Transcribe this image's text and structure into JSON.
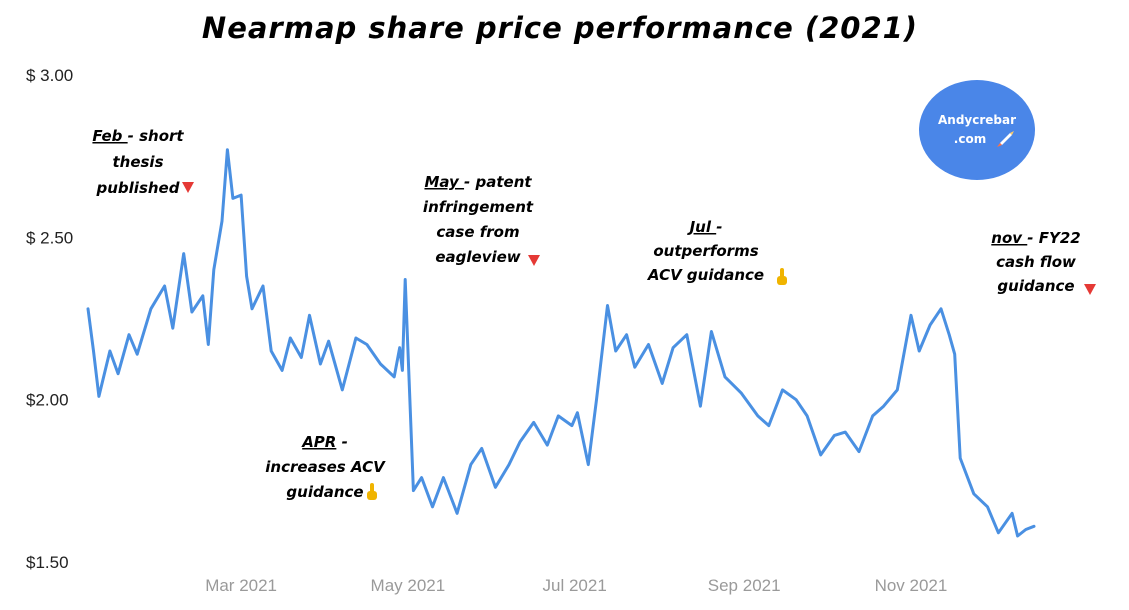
{
  "chart_data": {
    "type": "line",
    "title": "Nearmap share price performance (2021)",
    "xlabel": "",
    "ylabel": "",
    "x_ticks": [
      "Mar 2021",
      "May 2021",
      "Jul 2021",
      "Sep 2021",
      "Nov 2021"
    ],
    "y_ticks": [
      "$ 3.00",
      "$ 2.50",
      "$2.00",
      "$1.50"
    ],
    "ylim": [
      1.5,
      3.0
    ],
    "xlim": [
      "2021-01-04",
      "2021-12-31"
    ],
    "grid": false,
    "legend": "none",
    "line_color": "#4a90e2",
    "series": [
      {
        "x": [
          "2021-01-04",
          "2021-01-06",
          "2021-01-08",
          "2021-01-12",
          "2021-01-15",
          "2021-01-19",
          "2021-01-22",
          "2021-01-27",
          "2021-02-01",
          "2021-02-04",
          "2021-02-08",
          "2021-02-11",
          "2021-02-15",
          "2021-02-17",
          "2021-02-19",
          "2021-02-22",
          "2021-02-24",
          "2021-02-26",
          "2021-03-01",
          "2021-03-03",
          "2021-03-05",
          "2021-03-09",
          "2021-03-12",
          "2021-03-16",
          "2021-03-19",
          "2021-03-23",
          "2021-03-26",
          "2021-03-30",
          "2021-04-02",
          "2021-04-07",
          "2021-04-12",
          "2021-04-16",
          "2021-04-21",
          "2021-04-26",
          "2021-04-28",
          "2021-04-29",
          "2021-04-30",
          "2021-05-03",
          "2021-05-06",
          "2021-05-10",
          "2021-05-14",
          "2021-05-19",
          "2021-05-24",
          "2021-05-28",
          "2021-06-02",
          "2021-06-07",
          "2021-06-11",
          "2021-06-16",
          "2021-06-21",
          "2021-06-25",
          "2021-06-30",
          "2021-07-02",
          "2021-07-06",
          "2021-07-09",
          "2021-07-13",
          "2021-07-16",
          "2021-07-20",
          "2021-07-23",
          "2021-07-28",
          "2021-08-02",
          "2021-08-06",
          "2021-08-11",
          "2021-08-16",
          "2021-08-20",
          "2021-08-25",
          "2021-08-31",
          "2021-09-06",
          "2021-09-10",
          "2021-09-15",
          "2021-09-20",
          "2021-09-24",
          "2021-09-29",
          "2021-10-04",
          "2021-10-08",
          "2021-10-13",
          "2021-10-18",
          "2021-10-22",
          "2021-10-27",
          "2021-11-01",
          "2021-11-04",
          "2021-11-08",
          "2021-11-12",
          "2021-11-15",
          "2021-11-17",
          "2021-11-19",
          "2021-11-24",
          "2021-11-29",
          "2021-12-03",
          "2021-12-08",
          "2021-12-10",
          "2021-12-13",
          "2021-12-16"
        ],
        "values": [
          2.28,
          2.15,
          2.01,
          2.15,
          2.08,
          2.2,
          2.14,
          2.28,
          2.35,
          2.22,
          2.45,
          2.27,
          2.32,
          2.17,
          2.4,
          2.55,
          2.77,
          2.62,
          2.63,
          2.38,
          2.28,
          2.35,
          2.15,
          2.09,
          2.19,
          2.13,
          2.26,
          2.11,
          2.18,
          2.03,
          2.19,
          2.17,
          2.11,
          2.07,
          2.16,
          2.09,
          2.37,
          1.72,
          1.76,
          1.67,
          1.76,
          1.65,
          1.8,
          1.85,
          1.73,
          1.8,
          1.87,
          1.93,
          1.86,
          1.95,
          1.92,
          1.96,
          1.8,
          2.0,
          2.29,
          2.15,
          2.2,
          2.1,
          2.17,
          2.05,
          2.16,
          2.2,
          1.98,
          2.21,
          2.07,
          2.02,
          1.95,
          1.92,
          2.03,
          2.0,
          1.95,
          1.83,
          1.89,
          1.9,
          1.84,
          1.95,
          1.98,
          2.03,
          2.26,
          2.15,
          2.23,
          2.28,
          2.2,
          2.14,
          1.82,
          1.71,
          1.67,
          1.59,
          1.65,
          1.58,
          1.6,
          1.61
        ]
      }
    ],
    "annotations": [
      {
        "lead": "Feb ",
        "lines": [
          "- short",
          "thesis",
          "published"
        ],
        "marker": "down"
      },
      {
        "lead": "APR",
        "lines": [
          " -",
          "increases ACV",
          "guidance"
        ],
        "marker": "up"
      },
      {
        "lead": "May ",
        "lines": [
          "- patent",
          "infringement",
          "case from",
          "eagleview"
        ],
        "marker": "down"
      },
      {
        "lead": "Jul ",
        "lines": [
          "-",
          "outperforms",
          "ACV guidance"
        ],
        "marker": "up"
      },
      {
        "lead": "nov ",
        "lines": [
          "- FY22",
          "cash flow",
          "guidance"
        ],
        "marker": "down"
      }
    ]
  },
  "badge": {
    "line1": "Andycrebar",
    "line2": ".com",
    "color": "#4a86e8"
  }
}
